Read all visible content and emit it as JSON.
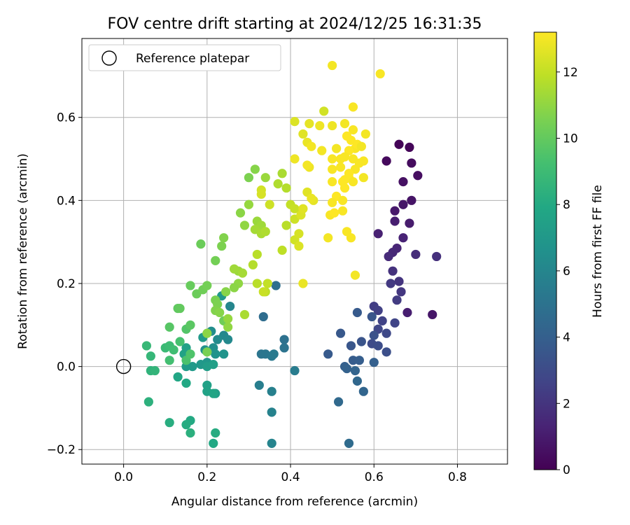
{
  "chart_data": {
    "type": "scatter",
    "title": "FOV centre drift starting at 2024/12/25 16:31:35",
    "xlabel": "Angular distance from reference (arcmin)",
    "ylabel": "Rotation from reference (arcmin)",
    "xlim": [
      -0.1,
      0.92
    ],
    "ylim": [
      -0.235,
      0.79
    ],
    "x_ticks": [
      0.0,
      0.2,
      0.4,
      0.6,
      0.8
    ],
    "x_tick_labels": [
      "0.0",
      "0.2",
      "0.4",
      "0.6",
      "0.8"
    ],
    "y_ticks": [
      -0.2,
      0.0,
      0.2,
      0.4,
      0.6
    ],
    "y_tick_labels": [
      "−0.2",
      "0.0",
      "0.2",
      "0.4",
      "0.6"
    ],
    "grid": true,
    "legend": {
      "placement": "top-left",
      "entries": [
        "Reference platepar"
      ]
    },
    "reference_point": {
      "x": 0.0,
      "y": 0.0,
      "marker": "hollow-circle"
    },
    "colorbar": {
      "label": "Hours from first FF file",
      "min": 0,
      "max": 13.2,
      "ticks": [
        0,
        2,
        4,
        6,
        8,
        10,
        12
      ],
      "tick_labels": [
        "0",
        "2",
        "4",
        "6",
        "8",
        "10",
        "12"
      ],
      "colormap": "viridis"
    },
    "series": [
      {
        "points": [
          [
            0.66,
            0.535,
            0.1
          ],
          [
            0.685,
            0.528,
            0.2
          ],
          [
            0.63,
            0.495,
            0.3
          ],
          [
            0.69,
            0.49,
            0.4
          ],
          [
            0.705,
            0.46,
            0.5
          ],
          [
            0.67,
            0.445,
            0.6
          ],
          [
            0.69,
            0.4,
            0.7
          ],
          [
            0.67,
            0.39,
            0.8
          ],
          [
            0.65,
            0.375,
            0.9
          ],
          [
            0.685,
            0.345,
            1.0
          ],
          [
            0.65,
            0.35,
            1.1
          ],
          [
            0.61,
            0.32,
            1.2
          ],
          [
            0.67,
            0.31,
            1.3
          ],
          [
            0.655,
            0.285,
            1.4
          ],
          [
            0.645,
            0.275,
            1.5
          ],
          [
            0.635,
            0.265,
            1.6
          ],
          [
            0.7,
            0.27,
            1.7
          ],
          [
            0.75,
            0.265,
            1.8
          ],
          [
            0.645,
            0.23,
            1.9
          ],
          [
            0.66,
            0.205,
            2.0
          ],
          [
            0.665,
            0.18,
            2.1
          ],
          [
            0.64,
            0.2,
            2.2
          ],
          [
            0.655,
            0.16,
            2.3
          ],
          [
            0.6,
            0.145,
            2.4
          ],
          [
            0.61,
            0.135,
            2.5
          ],
          [
            0.62,
            0.11,
            2.6
          ],
          [
            0.65,
            0.105,
            2.7
          ],
          [
            0.74,
            0.125,
            0.8
          ],
          [
            0.68,
            0.13,
            1.1
          ],
          [
            0.61,
            0.09,
            2.8
          ],
          [
            0.63,
            0.08,
            2.9
          ],
          [
            0.595,
            0.055,
            3.0
          ],
          [
            0.61,
            0.05,
            3.1
          ],
          [
            0.63,
            0.035,
            3.2
          ],
          [
            0.6,
            0.075,
            3.3
          ],
          [
            0.57,
            0.06,
            3.4
          ],
          [
            0.545,
            0.05,
            3.5
          ],
          [
            0.52,
            0.08,
            3.6
          ],
          [
            0.56,
            0.13,
            3.7
          ],
          [
            0.595,
            0.12,
            3.5
          ],
          [
            0.55,
            0.015,
            3.8
          ],
          [
            0.565,
            0.015,
            3.9
          ],
          [
            0.6,
            0.01,
            4.0
          ],
          [
            0.49,
            0.03,
            3.7
          ],
          [
            0.53,
            0.0,
            4.0
          ],
          [
            0.535,
            -0.005,
            4.1
          ],
          [
            0.555,
            -0.01,
            4.2
          ],
          [
            0.575,
            -0.06,
            4.3
          ],
          [
            0.56,
            -0.035,
            4.4
          ],
          [
            0.515,
            -0.085,
            4.5
          ],
          [
            0.54,
            -0.185,
            4.6
          ],
          [
            0.335,
            0.12,
            4.7
          ],
          [
            0.365,
            0.195,
            4.8
          ],
          [
            0.385,
            0.065,
            4.9
          ],
          [
            0.385,
            0.045,
            5.0
          ],
          [
            0.33,
            0.03,
            5.1
          ],
          [
            0.34,
            0.03,
            5.2
          ],
          [
            0.355,
            0.025,
            5.3
          ],
          [
            0.36,
            0.03,
            5.4
          ],
          [
            0.41,
            -0.01,
            5.5
          ],
          [
            0.325,
            -0.045,
            5.6
          ],
          [
            0.355,
            -0.06,
            5.7
          ],
          [
            0.355,
            -0.11,
            5.8
          ],
          [
            0.355,
            -0.185,
            5.9
          ],
          [
            0.255,
            0.145,
            6.0
          ],
          [
            0.24,
            0.075,
            6.1
          ],
          [
            0.25,
            0.065,
            6.2
          ],
          [
            0.225,
            0.065,
            6.3
          ],
          [
            0.21,
            0.085,
            6.4
          ],
          [
            0.215,
            0.045,
            6.5
          ],
          [
            0.195,
            0.04,
            6.6
          ],
          [
            0.22,
            0.03,
            6.7
          ],
          [
            0.24,
            0.03,
            6.8
          ],
          [
            0.2,
            0.01,
            6.9
          ],
          [
            0.185,
            0.005,
            7.0
          ],
          [
            0.165,
            0.0,
            7.1
          ],
          [
            0.15,
            0.0,
            7.2
          ],
          [
            0.2,
            0.0,
            7.3
          ],
          [
            0.215,
            0.005,
            7.4
          ],
          [
            0.19,
            0.07,
            7.1
          ],
          [
            0.15,
            0.045,
            7.5
          ],
          [
            0.145,
            0.03,
            7.6
          ],
          [
            0.235,
            0.17,
            7.0
          ],
          [
            0.22,
            -0.065,
            7.3
          ],
          [
            0.2,
            -0.045,
            7.5
          ],
          [
            0.2,
            -0.06,
            7.6
          ],
          [
            0.215,
            -0.065,
            7.7
          ],
          [
            0.13,
            -0.025,
            7.8
          ],
          [
            0.15,
            -0.04,
            7.9
          ],
          [
            0.16,
            -0.13,
            8.0
          ],
          [
            0.15,
            -0.14,
            8.1
          ],
          [
            0.11,
            -0.135,
            8.2
          ],
          [
            0.16,
            -0.16,
            8.3
          ],
          [
            0.22,
            -0.16,
            8.1
          ],
          [
            0.215,
            -0.185,
            7.9
          ],
          [
            0.06,
            -0.085,
            8.4
          ],
          [
            0.065,
            -0.01,
            8.5
          ],
          [
            0.075,
            -0.01,
            8.6
          ],
          [
            0.065,
            0.025,
            8.7
          ],
          [
            0.055,
            0.05,
            8.8
          ],
          [
            0.1,
            0.045,
            8.9
          ],
          [
            0.11,
            0.05,
            9.0
          ],
          [
            0.12,
            0.04,
            9.1
          ],
          [
            0.11,
            0.015,
            9.2
          ],
          [
            0.135,
            0.06,
            9.3
          ],
          [
            0.15,
            0.015,
            9.4
          ],
          [
            0.16,
            0.03,
            9.5
          ],
          [
            0.15,
            0.09,
            9.6
          ],
          [
            0.11,
            0.095,
            9.7
          ],
          [
            0.16,
            0.1,
            9.8
          ],
          [
            0.13,
            0.14,
            9.9
          ],
          [
            0.135,
            0.14,
            10.0
          ],
          [
            0.16,
            0.195,
            10.1
          ],
          [
            0.175,
            0.175,
            10.2
          ],
          [
            0.19,
            0.185,
            10.3
          ],
          [
            0.2,
            0.195,
            10.4
          ],
          [
            0.22,
            0.16,
            10.5
          ],
          [
            0.225,
            0.15,
            10.6
          ],
          [
            0.22,
            0.135,
            10.7
          ],
          [
            0.23,
            0.13,
            10.8
          ],
          [
            0.2,
            0.08,
            10.9
          ],
          [
            0.2,
            0.035,
            10.5
          ],
          [
            0.245,
            0.18,
            10.8
          ],
          [
            0.24,
            0.11,
            10.3
          ],
          [
            0.25,
            0.095,
            11.0
          ],
          [
            0.25,
            0.115,
            11.1
          ],
          [
            0.275,
            0.2,
            11.0
          ],
          [
            0.265,
            0.19,
            10.9
          ],
          [
            0.275,
            0.23,
            11.2
          ],
          [
            0.265,
            0.235,
            11.3
          ],
          [
            0.285,
            0.225,
            11.4
          ],
          [
            0.29,
            0.125,
            11.5
          ],
          [
            0.22,
            0.255,
            10.4
          ],
          [
            0.235,
            0.29,
            10.6
          ],
          [
            0.24,
            0.31,
            10.7
          ],
          [
            0.185,
            0.295,
            10.2
          ],
          [
            0.28,
            0.37,
            10.9
          ],
          [
            0.29,
            0.34,
            11.0
          ],
          [
            0.3,
            0.39,
            11.1
          ],
          [
            0.32,
            0.35,
            11.2
          ],
          [
            0.33,
            0.34,
            11.3
          ],
          [
            0.315,
            0.33,
            11.4
          ],
          [
            0.33,
            0.32,
            11.5
          ],
          [
            0.34,
            0.325,
            11.6
          ],
          [
            0.31,
            0.245,
            11.7
          ],
          [
            0.32,
            0.2,
            11.8
          ],
          [
            0.34,
            0.18,
            11.9
          ],
          [
            0.345,
            0.2,
            12.0
          ],
          [
            0.335,
            0.18,
            12.1
          ],
          [
            0.35,
            0.39,
            12.2
          ],
          [
            0.33,
            0.425,
            12.3
          ],
          [
            0.33,
            0.415,
            12.4
          ],
          [
            0.3,
            0.455,
            10.6
          ],
          [
            0.315,
            0.475,
            10.8
          ],
          [
            0.34,
            0.455,
            11.2
          ],
          [
            0.38,
            0.465,
            11.5
          ],
          [
            0.37,
            0.44,
            11.6
          ],
          [
            0.39,
            0.43,
            11.7
          ],
          [
            0.39,
            0.34,
            11.8
          ],
          [
            0.38,
            0.28,
            11.9
          ],
          [
            0.32,
            0.27,
            11.8
          ],
          [
            0.4,
            0.39,
            12.0
          ],
          [
            0.41,
            0.38,
            12.1
          ],
          [
            0.41,
            0.355,
            12.2
          ],
          [
            0.41,
            0.305,
            12.3
          ],
          [
            0.42,
            0.32,
            12.4
          ],
          [
            0.42,
            0.29,
            12.5
          ],
          [
            0.425,
            0.365,
            12.5
          ],
          [
            0.43,
            0.38,
            12.6
          ],
          [
            0.44,
            0.42,
            12.6
          ],
          [
            0.455,
            0.4,
            12.7
          ],
          [
            0.45,
            0.405,
            12.8
          ],
          [
            0.43,
            0.2,
            12.8
          ],
          [
            0.41,
            0.59,
            12.5
          ],
          [
            0.43,
            0.56,
            12.6
          ],
          [
            0.445,
            0.585,
            12.7
          ],
          [
            0.44,
            0.54,
            12.8
          ],
          [
            0.47,
            0.58,
            12.9
          ],
          [
            0.445,
            0.48,
            12.9
          ],
          [
            0.44,
            0.485,
            13.0
          ],
          [
            0.41,
            0.5,
            12.9
          ],
          [
            0.45,
            0.53,
            13.0
          ],
          [
            0.475,
            0.52,
            13.0
          ],
          [
            0.48,
            0.615,
            12.3
          ],
          [
            0.5,
            0.58,
            12.9
          ],
          [
            0.51,
            0.525,
            13.0
          ],
          [
            0.5,
            0.5,
            13.1
          ],
          [
            0.52,
            0.5,
            13.1
          ],
          [
            0.5,
            0.475,
            13.1
          ],
          [
            0.525,
            0.445,
            13.2
          ],
          [
            0.53,
            0.45,
            13.2
          ],
          [
            0.54,
            0.455,
            13.2
          ],
          [
            0.53,
            0.43,
            13.2
          ],
          [
            0.51,
            0.41,
            13.2
          ],
          [
            0.5,
            0.395,
            13.1
          ],
          [
            0.525,
            0.4,
            13.1
          ],
          [
            0.525,
            0.375,
            13.1
          ],
          [
            0.495,
            0.365,
            13.1
          ],
          [
            0.505,
            0.37,
            13.2
          ],
          [
            0.535,
            0.325,
            13.1
          ],
          [
            0.545,
            0.31,
            13.1
          ],
          [
            0.49,
            0.31,
            13.0
          ],
          [
            0.555,
            0.22,
            13.0
          ],
          [
            0.5,
            0.725,
            13.0
          ],
          [
            0.615,
            0.705,
            13.1
          ],
          [
            0.55,
            0.625,
            13.1
          ],
          [
            0.53,
            0.585,
            13.0
          ],
          [
            0.55,
            0.57,
            13.1
          ],
          [
            0.555,
            0.525,
            13.1
          ],
          [
            0.535,
            0.555,
            13.2
          ],
          [
            0.545,
            0.545,
            13.2
          ],
          [
            0.56,
            0.535,
            13.2
          ],
          [
            0.54,
            0.52,
            13.2
          ],
          [
            0.53,
            0.505,
            13.1
          ],
          [
            0.55,
            0.5,
            13.1
          ],
          [
            0.57,
            0.53,
            13.0
          ],
          [
            0.58,
            0.56,
            13.0
          ],
          [
            0.565,
            0.49,
            13.1
          ],
          [
            0.575,
            0.495,
            13.1
          ],
          [
            0.555,
            0.475,
            13.1
          ],
          [
            0.54,
            0.465,
            13.2
          ],
          [
            0.55,
            0.445,
            13.1
          ],
          [
            0.575,
            0.455,
            13.0
          ],
          [
            0.52,
            0.48,
            13.1
          ],
          [
            0.5,
            0.445,
            13.1
          ]
        ]
      }
    ]
  }
}
